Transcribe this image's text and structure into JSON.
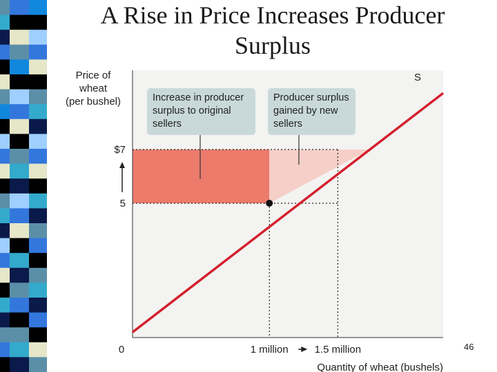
{
  "slide": {
    "title_line1": "A Rise in Price Increases Producer",
    "title_line2": "Surplus",
    "page_number": "46"
  },
  "decor": {
    "stripe_colors": [
      "#5b8fa8",
      "#33aacc",
      "#0a1a4a",
      "#3377dd",
      "#000000",
      "#e6e6c8",
      "#5b8fa8",
      "#1188dd",
      "#000000",
      "#9fcfff",
      "#3377dd",
      "#e6e6c8",
      "#000000",
      "#5b8fa8",
      "#33aacc",
      "#0a1a4a",
      "#9fcfff",
      "#3377dd",
      "#e6e6c8",
      "#000000",
      "#33aacc",
      "#0a1a4a",
      "#5b8fa8",
      "#3377dd",
      "#000000"
    ]
  },
  "chart_data": {
    "type": "line",
    "title": "",
    "ylabel_lines": [
      "Price of",
      "wheat",
      "(per bushel)"
    ],
    "xlabel": "Quantity of wheat (bushels)",
    "x_ticks": [
      {
        "value": 0,
        "label": "0"
      },
      {
        "value": 1,
        "label": "1 million"
      },
      {
        "value": 1.5,
        "label": "1.5 million"
      }
    ],
    "y_ticks": [
      {
        "value": 5,
        "label": "5"
      },
      {
        "value": 7,
        "label": "$7"
      }
    ],
    "xlim": [
      0,
      2.27
    ],
    "ylim": [
      0,
      9.95
    ],
    "series": [
      {
        "name": "S",
        "x": [
          0,
          2.27
        ],
        "y": [
          0.2,
          9.1
        ]
      }
    ],
    "original_point": {
      "x": 1,
      "y": 5
    },
    "new_point": {
      "x": 1.5,
      "y": 7
    },
    "callouts": [
      {
        "lines": [
          "Increase in producer",
          "surplus to original",
          "sellers"
        ]
      },
      {
        "lines": [
          "Producer surplus",
          "gained by new",
          "sellers"
        ]
      }
    ],
    "colors": {
      "supply": "#d4202e",
      "area_original": "#ec7b6c",
      "area_new": "#f6cfc9",
      "callout_bg": "#c9d9d9",
      "plot_bg": "#f3f3f1"
    },
    "grid": false
  }
}
